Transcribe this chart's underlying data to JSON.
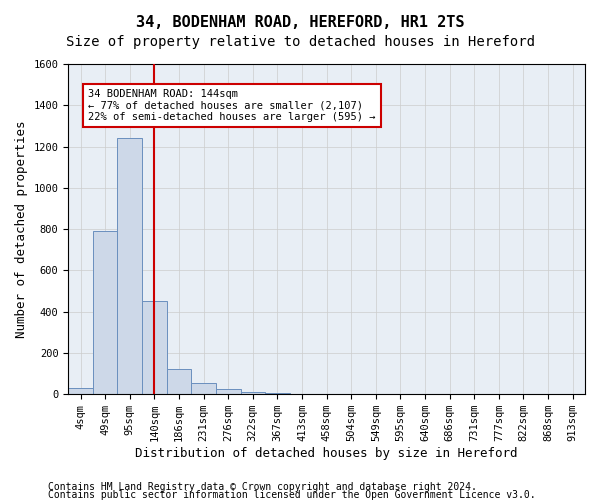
{
  "title": "34, BODENHAM ROAD, HEREFORD, HR1 2TS",
  "subtitle": "Size of property relative to detached houses in Hereford",
  "xlabel": "Distribution of detached houses by size in Hereford",
  "ylabel": "Number of detached properties",
  "bin_labels": [
    "4sqm",
    "49sqm",
    "95sqm",
    "140sqm",
    "186sqm",
    "231sqm",
    "276sqm",
    "322sqm",
    "367sqm",
    "413sqm",
    "458sqm",
    "504sqm",
    "549sqm",
    "595sqm",
    "640sqm",
    "686sqm",
    "731sqm",
    "777sqm",
    "822sqm",
    "868sqm",
    "913sqm"
  ],
  "bar_values": [
    30,
    790,
    1240,
    450,
    120,
    55,
    25,
    13,
    8,
    3,
    0,
    0,
    0,
    0,
    0,
    0,
    0,
    0,
    0,
    0,
    0
  ],
  "bar_color": "#cdd8e8",
  "bar_edge_color": "#6a8fbe",
  "red_line_x": 3,
  "annotation_text": "34 BODENHAM ROAD: 144sqm\n← 77% of detached houses are smaller (2,107)\n22% of semi-detached houses are larger (595) →",
  "annotation_box_color": "#ffffff",
  "annotation_box_edge": "#cc0000",
  "red_line_color": "#cc0000",
  "ylim": [
    0,
    1600
  ],
  "yticks": [
    0,
    200,
    400,
    600,
    800,
    1000,
    1200,
    1400,
    1600
  ],
  "grid_color": "#cccccc",
  "background_color": "#ffffff",
  "ax_facecolor": "#e8eef5",
  "footer_line1": "Contains HM Land Registry data © Crown copyright and database right 2024.",
  "footer_line2": "Contains public sector information licensed under the Open Government Licence v3.0.",
  "title_fontsize": 11,
  "subtitle_fontsize": 10,
  "axis_label_fontsize": 9,
  "tick_fontsize": 7.5,
  "footer_fontsize": 7
}
